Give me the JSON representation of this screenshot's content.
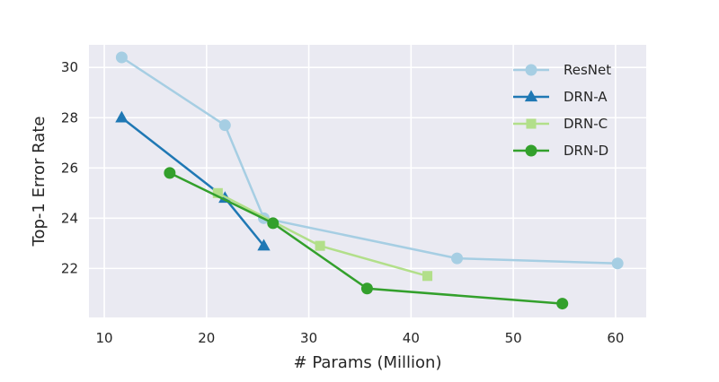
{
  "chart_data": {
    "type": "line",
    "title": "",
    "xlabel": "# Params (Million)",
    "ylabel": "Top-1 Error Rate",
    "xlim": [
      8.5,
      63
    ],
    "ylim": [
      20.05,
      30.9
    ],
    "xticks": [
      10,
      20,
      30,
      40,
      50,
      60
    ],
    "yticks": [
      22,
      24,
      26,
      28,
      30
    ],
    "grid": true,
    "background": "#eaeaf2",
    "legend_position": "top-right",
    "series": [
      {
        "name": "ResNet",
        "color": "#a6cee3",
        "marker": "circle",
        "x": [
          11.7,
          21.8,
          25.6,
          44.5,
          60.2
        ],
        "y": [
          30.4,
          27.7,
          24.0,
          22.4,
          22.2
        ]
      },
      {
        "name": "DRN-A",
        "color": "#1f78b4",
        "marker": "triangle",
        "x": [
          11.7,
          21.8,
          25.6
        ],
        "y": [
          28.0,
          24.8,
          22.9
        ]
      },
      {
        "name": "DRN-C",
        "color": "#b2df8a",
        "marker": "square",
        "x": [
          21.1,
          31.1,
          41.6
        ],
        "y": [
          25.0,
          22.9,
          21.7
        ]
      },
      {
        "name": "DRN-D",
        "color": "#33a02c",
        "marker": "circle",
        "x": [
          16.4,
          26.5,
          35.7,
          54.8
        ],
        "y": [
          25.8,
          23.8,
          21.2,
          20.6
        ]
      }
    ]
  }
}
